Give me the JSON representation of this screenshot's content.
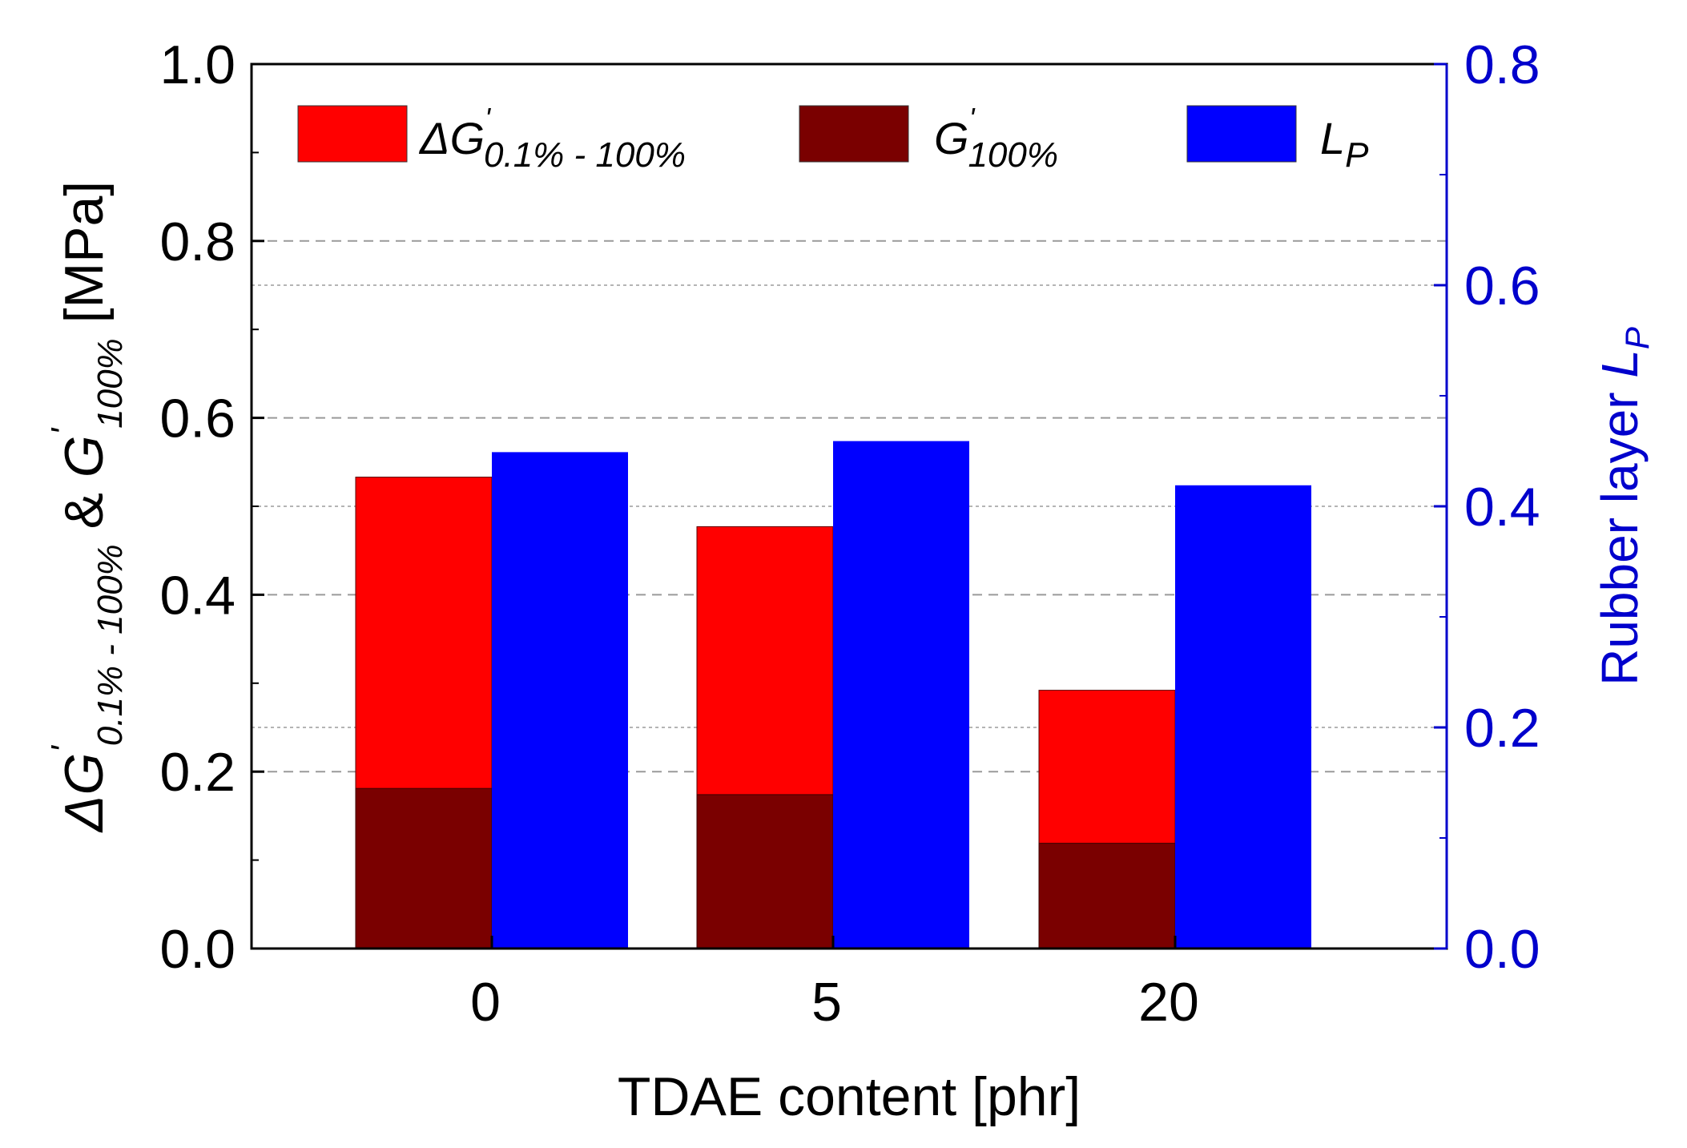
{
  "chart_data": {
    "type": "bar",
    "categories": [
      "0",
      "5",
      "20"
    ],
    "xlabel": "TDAE content [phr]",
    "ylabel_left": {
      "main_1": "ΔG",
      "prime": "'",
      "sub_1": "0.1% - 100%",
      "amp": " & ",
      "main_2": "G",
      "sub_2": "100%",
      "unit": " [MPa]"
    },
    "ylabel_right": {
      "main": "Rubber layer ",
      "italic": "L",
      "sub": "P"
    },
    "ylim_left": [
      0,
      1.0
    ],
    "ylim_right": [
      0,
      0.8
    ],
    "yticks_left": [
      "0.0",
      "0.2",
      "0.4",
      "0.6",
      "0.8",
      "1.0"
    ],
    "yticks_right": [
      "0.0",
      "0.2",
      "0.4",
      "0.6",
      "0.8"
    ],
    "series": [
      {
        "name": "ΔG'0.1% - 100%",
        "axis": "left",
        "stacked_on": "G'100%",
        "total_values": [
          0.533,
          0.477,
          0.292
        ],
        "color": "#ff0000"
      },
      {
        "name": "G'100%",
        "axis": "left",
        "values": [
          0.181,
          0.174,
          0.119
        ],
        "color": "#7a0000"
      },
      {
        "name": "Lp",
        "axis": "right",
        "values": [
          0.449,
          0.459,
          0.419
        ],
        "color": "#0000ff"
      }
    ],
    "legend": [
      {
        "main": "ΔG",
        "prime": "'",
        "sub": "0.1% - 100%",
        "color": "#ff0000"
      },
      {
        "main": "G",
        "prime": "'",
        "sub": "100%",
        "color": "#7a0000"
      },
      {
        "main": "L",
        "prime": "",
        "sub": "P",
        "color": "#0000ff"
      }
    ],
    "grid": "dashed horizontal",
    "legend_position": "top",
    "colors": {
      "left_axis": "#000000",
      "right_axis": "#0000cc",
      "grid": "#9a9a9a"
    }
  }
}
